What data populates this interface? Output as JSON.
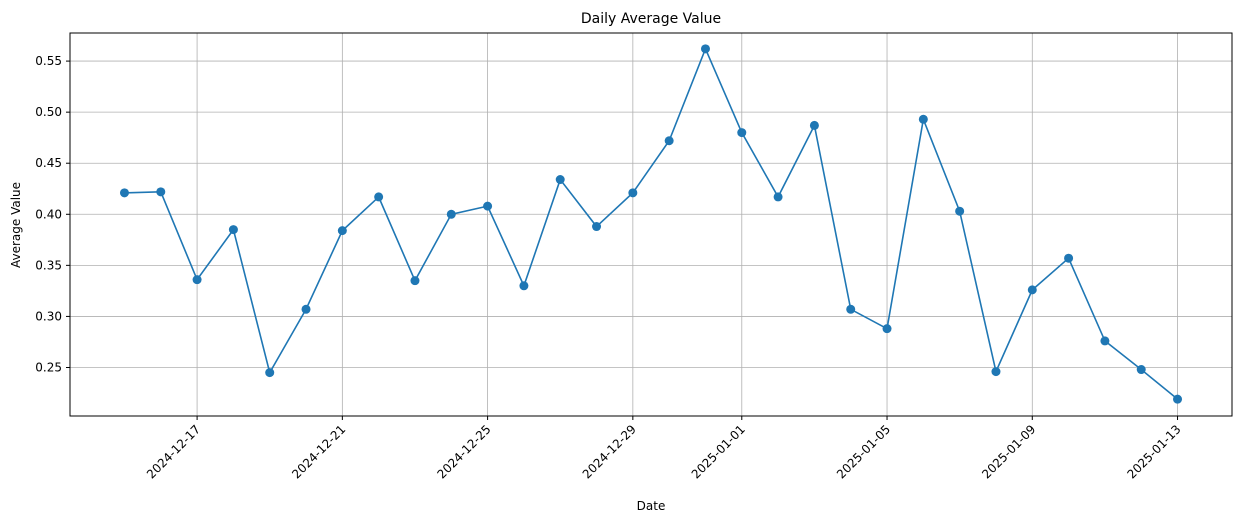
{
  "chart_data": {
    "type": "line",
    "title": "Daily Average Value",
    "xlabel": "Date",
    "ylabel": "Average Value",
    "grid": true,
    "ylim": [
      0.2025,
      0.5775
    ],
    "xlim": [
      "2024-12-13T12:00",
      "2025-01-14T12:00"
    ],
    "x_ticks": [
      "2024-12-17",
      "2024-12-21",
      "2024-12-25",
      "2024-12-29",
      "2025-01-01",
      "2025-01-05",
      "2025-01-09",
      "2025-01-13"
    ],
    "y_ticks": [
      "0.25",
      "0.30",
      "0.35",
      "0.40",
      "0.45",
      "0.50",
      "0.55"
    ],
    "color": "#1f77b4",
    "series": [
      {
        "x": [
          "2024-12-15",
          "2024-12-16",
          "2024-12-17",
          "2024-12-18",
          "2024-12-19",
          "2024-12-20",
          "2024-12-21",
          "2024-12-22",
          "2024-12-23",
          "2024-12-24",
          "2024-12-25",
          "2024-12-26",
          "2024-12-27",
          "2024-12-28",
          "2024-12-29",
          "2024-12-30",
          "2024-12-31",
          "2025-01-01",
          "2025-01-02",
          "2025-01-03",
          "2025-01-04",
          "2025-01-05",
          "2025-01-06",
          "2025-01-07",
          "2025-01-08",
          "2025-01-09",
          "2025-01-10",
          "2025-01-11",
          "2025-01-12",
          "2025-01-13"
        ],
        "values": [
          0.421,
          0.422,
          0.336,
          0.385,
          0.245,
          0.307,
          0.384,
          0.417,
          0.335,
          0.4,
          0.408,
          0.33,
          0.434,
          0.388,
          0.421,
          0.472,
          0.562,
          0.48,
          0.417,
          0.487,
          0.307,
          0.288,
          0.493,
          0.403,
          0.246,
          0.326,
          0.357,
          0.276,
          0.248,
          0.219
        ]
      }
    ]
  }
}
